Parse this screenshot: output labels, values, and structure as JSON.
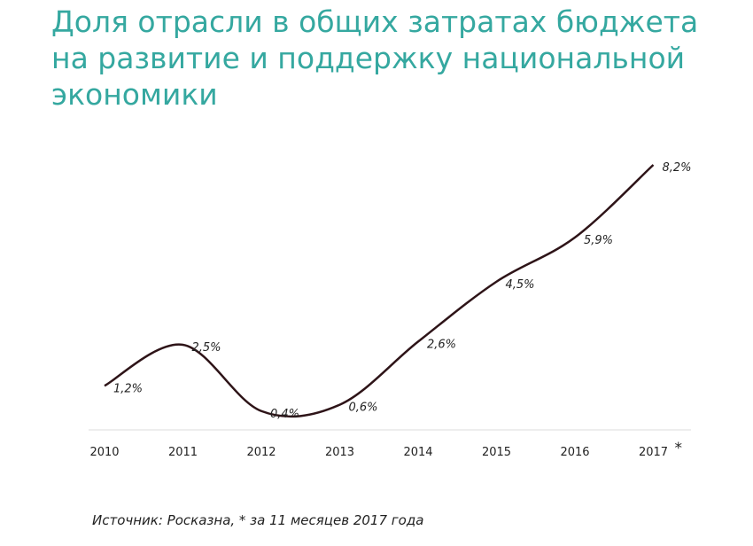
{
  "title": "Доля отрасли в общих затратах бюджета на развитие и поддержку национальной экономики",
  "source": "Источник: Росказна, * за 11 месяцев 2017 года",
  "colors": {
    "title": "#35a8a0",
    "line": "#2e1418",
    "text": "#222222",
    "grid": "#eeeeee"
  },
  "chart_data": {
    "type": "line",
    "title": "Доля отрасли в общих затратах бюджета на развитие и поддержку национальной экономики",
    "categories": [
      "2010",
      "2011",
      "2012",
      "2013",
      "2014",
      "2015",
      "2016",
      "2017"
    ],
    "category_note": {
      "category": "2017",
      "mark": "*"
    },
    "values": [
      1.2,
      2.5,
      0.4,
      0.6,
      2.6,
      4.5,
      5.9,
      8.2
    ],
    "data_labels": [
      "1,2%",
      "2,5%",
      "0,4%",
      "0,6%",
      "2,6%",
      "4,5%",
      "5,9%",
      "8,2%"
    ],
    "unit": "%",
    "smooth": true,
    "xlabel": "",
    "ylabel": "",
    "ylim": [
      0,
      8.2
    ],
    "grid": false,
    "legend": "none"
  }
}
